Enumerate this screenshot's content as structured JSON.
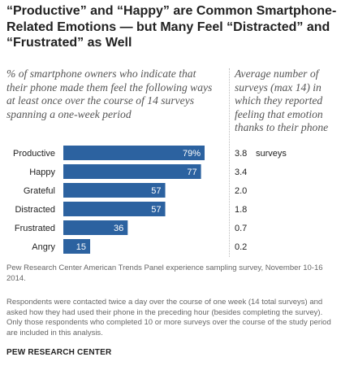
{
  "header": {
    "title": "“Productive” and “Happy” are Common Smartphone-Related Emotions — but Many Feel “Distracted” and “Frustrated” as Well",
    "subtitle_left": "% of smartphone owners who indicate that their phone made them feel the following ways at least once over the course of 14 surveys spanning a one-week period",
    "subtitle_right": "Average number of surveys (max 14) in which they reported feeling that emotion thanks to their phone"
  },
  "chart_data": {
    "type": "bar",
    "orientation": "horizontal",
    "categories": [
      "Productive",
      "Happy",
      "Grateful",
      "Distracted",
      "Frustrated",
      "Angry"
    ],
    "values": [
      79,
      77,
      57,
      57,
      36,
      15
    ],
    "value_labels": [
      "79%",
      "77",
      "57",
      "57",
      "36",
      "15"
    ],
    "xlim": [
      0,
      100
    ],
    "bar_color": "#2c62a0",
    "grid": false,
    "axes_shown": false,
    "second_column": {
      "values": [
        3.8,
        3.4,
        2.0,
        1.8,
        0.7,
        0.2
      ],
      "labels": [
        "3.8",
        "3.4",
        "2.0",
        "1.8",
        "0.7",
        "0.2"
      ],
      "unit": "surveys"
    }
  },
  "footer": {
    "source": "Pew Research Center American Trends Panel experience sampling survey, November 10-16 2014.",
    "note": "Respondents were contacted twice a day over the course of one week (14 total surveys) and asked how they had used their phone in the preceding hour (besides completing the survey). Only those respondents who completed 10 or more surveys over the course of the study period are included in this analysis.",
    "brand": "PEW RESEARCH CENTER"
  }
}
